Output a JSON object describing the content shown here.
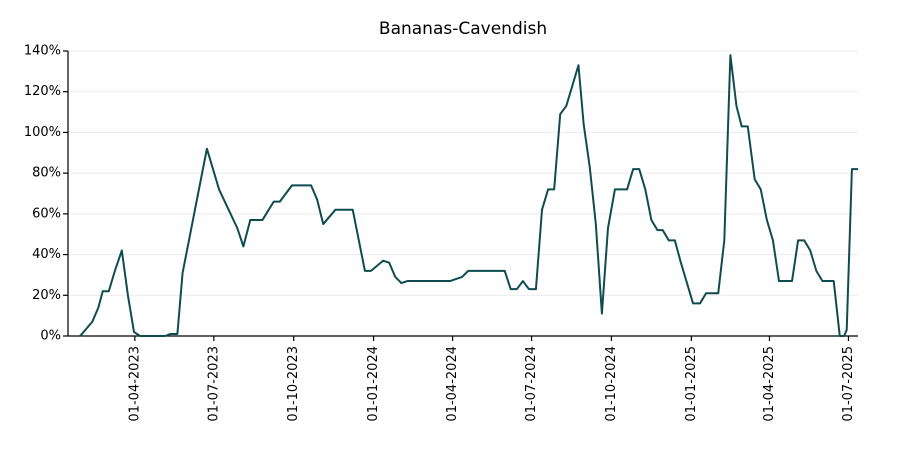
{
  "chart_data": {
    "type": "line",
    "title": "Bananas-Cavendish",
    "x": [
      "2023-01-28",
      "2023-02-11",
      "2023-02-18",
      "2023-02-23",
      "2023-03-02",
      "2023-03-09",
      "2023-03-17",
      "2023-03-24",
      "2023-03-31",
      "2023-04-07",
      "2023-05-06",
      "2023-05-12",
      "2023-05-20",
      "2023-05-26",
      "2023-06-23",
      "2023-07-07",
      "2023-07-28",
      "2023-08-04",
      "2023-08-12",
      "2023-08-26",
      "2023-09-08",
      "2023-09-15",
      "2023-09-29",
      "2023-10-21",
      "2023-10-28",
      "2023-11-04",
      "2023-11-18",
      "2023-12-08",
      "2023-12-22",
      "2023-12-29",
      "2024-01-12",
      "2024-01-19",
      "2024-01-26",
      "2024-02-02",
      "2024-02-09",
      "2024-03-29",
      "2024-04-12",
      "2024-04-19",
      "2024-05-31",
      "2024-06-07",
      "2024-06-14",
      "2024-06-21",
      "2024-06-28",
      "2024-07-06",
      "2024-07-13",
      "2024-07-20",
      "2024-07-27",
      "2024-08-03",
      "2024-08-10",
      "2024-08-24",
      "2024-08-30",
      "2024-09-06",
      "2024-09-13",
      "2024-09-20",
      "2024-09-27",
      "2024-10-05",
      "2024-10-19",
      "2024-10-26",
      "2024-11-02",
      "2024-11-09",
      "2024-11-16",
      "2024-11-23",
      "2024-11-29",
      "2024-12-06",
      "2024-12-13",
      "2024-12-20",
      "2025-01-03",
      "2025-01-11",
      "2025-01-18",
      "2025-02-01",
      "2025-02-08",
      "2025-02-15",
      "2025-02-22",
      "2025-02-28",
      "2025-03-07",
      "2025-03-15",
      "2025-03-22",
      "2025-03-29",
      "2025-04-05",
      "2025-04-12",
      "2025-04-27",
      "2025-05-04",
      "2025-05-11",
      "2025-05-18",
      "2025-05-25",
      "2025-06-01",
      "2025-06-14",
      "2025-06-21",
      "2025-06-26",
      "2025-06-29",
      "2025-07-05",
      "2025-07-12"
    ],
    "series": [
      {
        "name": "Bananas-Cavendish",
        "color": "#0f4c50",
        "values": [
          0,
          7,
          14,
          22,
          22,
          32,
          42,
          20,
          2,
          0,
          0,
          1,
          1,
          31,
          92,
          72,
          53,
          44,
          57,
          57,
          66,
          66,
          74,
          74,
          67,
          55,
          62,
          62,
          32,
          32,
          37,
          36,
          29,
          26,
          27,
          27,
          29,
          32,
          32,
          23,
          23,
          27,
          23,
          23,
          62,
          72,
          72,
          109,
          113,
          133,
          104,
          83,
          55,
          11,
          53,
          72,
          72,
          82,
          82,
          72,
          57,
          52,
          52,
          47,
          47,
          36,
          16,
          16,
          21,
          21,
          47,
          138,
          113,
          103,
          103,
          77,
          72,
          57,
          47,
          27,
          27,
          47,
          47,
          42,
          32,
          27,
          27,
          0,
          0,
          3,
          82,
          82
        ]
      }
    ],
    "xlim": [
      "2023-01-14",
      "2025-07-12"
    ],
    "xticks": [
      {
        "value": "2023-04-01",
        "label": "01-04-2023"
      },
      {
        "value": "2023-07-01",
        "label": "01-07-2023"
      },
      {
        "value": "2023-10-01",
        "label": "01-10-2023"
      },
      {
        "value": "2024-01-01",
        "label": "01-01-2024"
      },
      {
        "value": "2024-04-01",
        "label": "01-04-2024"
      },
      {
        "value": "2024-07-01",
        "label": "01-07-2024"
      },
      {
        "value": "2024-10-01",
        "label": "01-10-2024"
      },
      {
        "value": "2025-01-01",
        "label": "01-01-2025"
      },
      {
        "value": "2025-04-01",
        "label": "01-04-2025"
      },
      {
        "value": "2025-07-01",
        "label": "01-07-2025"
      }
    ],
    "ylim": [
      0,
      140
    ],
    "yticks": [
      {
        "value": 0,
        "label": "0%"
      },
      {
        "value": 20,
        "label": "20%"
      },
      {
        "value": 40,
        "label": "40%"
      },
      {
        "value": 60,
        "label": "60%"
      },
      {
        "value": 80,
        "label": "80%"
      },
      {
        "value": 100,
        "label": "100%"
      },
      {
        "value": 120,
        "label": "120%"
      },
      {
        "value": 140,
        "label": "140%"
      }
    ],
    "grid": true
  }
}
